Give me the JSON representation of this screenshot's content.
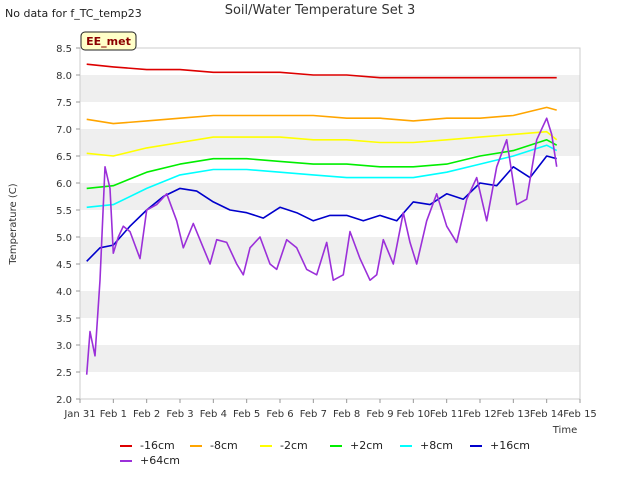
{
  "no_data_text": "No data for f_TC_temp23",
  "chart_data": {
    "type": "line",
    "title": "Soil/Water Temperature Set 3",
    "xlabel": "Time",
    "ylabel": "Temperature (C)",
    "ylim": [
      2.0,
      8.5
    ],
    "yticks": [
      2.0,
      2.5,
      3.0,
      3.5,
      4.0,
      4.5,
      5.0,
      5.5,
      6.0,
      6.5,
      7.0,
      7.5,
      8.0,
      8.5
    ],
    "ytick_labels": [
      "2.0",
      "2.5",
      "3.0",
      "3.5",
      "4.0",
      "4.5",
      "5.0",
      "5.5",
      "6.0",
      "6.5",
      "7.0",
      "7.5",
      "8.0",
      "8.5"
    ],
    "xlim": [
      0,
      15
    ],
    "xticks": [
      0,
      1,
      2,
      3,
      4,
      5,
      6,
      7,
      8,
      9,
      10,
      11,
      12,
      13,
      14,
      15
    ],
    "xtick_labels": [
      "Jan 31",
      "Feb 1",
      "Feb 2",
      "Feb 3",
      "Feb 4",
      "Feb 5",
      "Feb 6",
      "Feb 7",
      "Feb 8",
      "Feb 9",
      "Feb 10",
      "Feb 11",
      "Feb 12",
      "Feb 13",
      "Feb 14",
      "Feb 15"
    ],
    "grid": "horizontal bands",
    "legend_placement": "bottom",
    "annotation": "EE_met",
    "series": [
      {
        "name": "-16cm",
        "color": "#dd0000",
        "x": [
          0.2,
          1,
          2,
          3,
          4,
          5,
          6,
          7,
          8,
          9,
          10,
          11,
          12,
          13,
          14,
          14.3
        ],
        "y": [
          8.2,
          8.15,
          8.1,
          8.1,
          8.05,
          8.05,
          8.05,
          8.0,
          8.0,
          7.95,
          7.95,
          7.95,
          7.95,
          7.95,
          7.95,
          7.95
        ]
      },
      {
        "name": "-8cm",
        "color": "#ffa500",
        "x": [
          0.2,
          1,
          2,
          3,
          4,
          5,
          6,
          7,
          8,
          9,
          10,
          11,
          12,
          13,
          14,
          14.3
        ],
        "y": [
          7.18,
          7.1,
          7.15,
          7.2,
          7.25,
          7.25,
          7.25,
          7.25,
          7.2,
          7.2,
          7.15,
          7.2,
          7.2,
          7.25,
          7.4,
          7.35
        ]
      },
      {
        "name": "-2cm",
        "color": "#ffff00",
        "x": [
          0.2,
          1,
          2,
          3,
          4,
          5,
          6,
          7,
          8,
          9,
          10,
          11,
          12,
          13,
          14,
          14.3
        ],
        "y": [
          6.55,
          6.5,
          6.65,
          6.75,
          6.85,
          6.85,
          6.85,
          6.8,
          6.8,
          6.75,
          6.75,
          6.8,
          6.85,
          6.9,
          6.95,
          6.8
        ]
      },
      {
        "name": "+2cm",
        "color": "#00ee00",
        "x": [
          0.2,
          1,
          2,
          3,
          4,
          5,
          6,
          7,
          8,
          9,
          10,
          11,
          12,
          13,
          14,
          14.3
        ],
        "y": [
          5.9,
          5.95,
          6.2,
          6.35,
          6.45,
          6.45,
          6.4,
          6.35,
          6.35,
          6.3,
          6.3,
          6.35,
          6.5,
          6.6,
          6.8,
          6.7
        ]
      },
      {
        "name": "+8cm",
        "color": "#00ffff",
        "x": [
          0.2,
          1,
          2,
          3,
          4,
          5,
          6,
          7,
          8,
          9,
          10,
          11,
          12,
          13,
          14,
          14.3
        ],
        "y": [
          5.55,
          5.6,
          5.9,
          6.15,
          6.25,
          6.25,
          6.2,
          6.15,
          6.1,
          6.1,
          6.1,
          6.2,
          6.35,
          6.5,
          6.7,
          6.6
        ]
      },
      {
        "name": "+16cm",
        "color": "#0000cc",
        "x": [
          0.2,
          0.6,
          1,
          1.5,
          2,
          2.5,
          3,
          3.5,
          4,
          4.5,
          5,
          5.5,
          6,
          6.5,
          7,
          7.5,
          8,
          8.5,
          9,
          9.5,
          10,
          10.5,
          11,
          11.5,
          12,
          12.5,
          13,
          13.5,
          14,
          14.3
        ],
        "y": [
          4.55,
          4.8,
          4.85,
          5.2,
          5.5,
          5.75,
          5.9,
          5.85,
          5.65,
          5.5,
          5.45,
          5.35,
          5.55,
          5.45,
          5.3,
          5.4,
          5.4,
          5.3,
          5.4,
          5.3,
          5.65,
          5.6,
          5.8,
          5.7,
          6.0,
          5.95,
          6.3,
          6.1,
          6.5,
          6.45
        ]
      },
      {
        "name": "+64cm",
        "color": "#9b30d9",
        "x": [
          0.2,
          0.3,
          0.45,
          0.6,
          0.75,
          0.9,
          1.0,
          1.15,
          1.3,
          1.5,
          1.8,
          2.0,
          2.3,
          2.6,
          2.9,
          3.1,
          3.4,
          3.7,
          3.9,
          4.1,
          4.4,
          4.7,
          4.9,
          5.1,
          5.4,
          5.7,
          5.9,
          6.2,
          6.5,
          6.8,
          7.1,
          7.4,
          7.6,
          7.9,
          8.1,
          8.4,
          8.7,
          8.9,
          9.1,
          9.4,
          9.7,
          9.9,
          10.1,
          10.4,
          10.7,
          11.0,
          11.3,
          11.6,
          11.9,
          12.2,
          12.5,
          12.8,
          13.1,
          13.4,
          13.7,
          14.0,
          14.15,
          14.3
        ],
        "y": [
          2.45,
          3.25,
          2.8,
          4.2,
          6.3,
          5.9,
          4.7,
          5.0,
          5.2,
          5.1,
          4.6,
          5.5,
          5.6,
          5.8,
          5.3,
          4.8,
          5.25,
          4.8,
          4.5,
          4.95,
          4.9,
          4.5,
          4.3,
          4.8,
          5.0,
          4.5,
          4.4,
          4.95,
          4.8,
          4.4,
          4.3,
          4.9,
          4.2,
          4.3,
          5.1,
          4.6,
          4.2,
          4.3,
          4.95,
          4.5,
          5.45,
          4.9,
          4.5,
          5.3,
          5.8,
          5.2,
          4.9,
          5.7,
          6.1,
          5.3,
          6.3,
          6.8,
          5.6,
          5.7,
          6.8,
          7.2,
          6.9,
          6.3
        ]
      }
    ]
  }
}
